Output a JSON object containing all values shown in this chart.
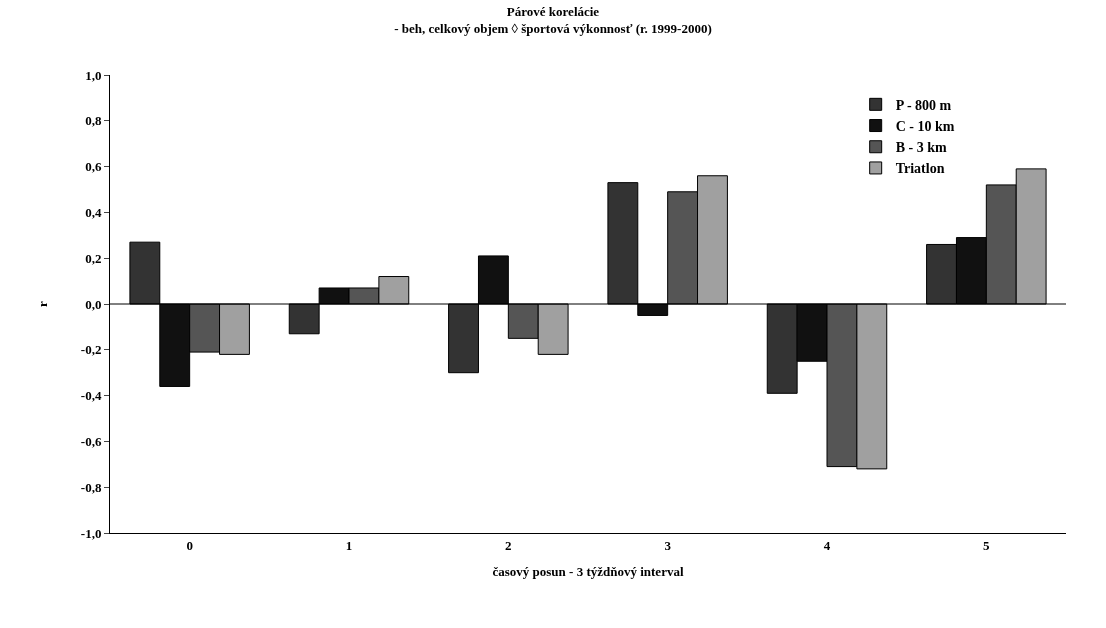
{
  "chart_data": {
    "type": "bar",
    "title": "Párové korelácie",
    "subtitle": "- beh, celkový objem ◊ športová výkonnosť (r. 1999-2000)",
    "xlabel": "časový posun - 3 týždňový interval",
    "ylabel": "r",
    "categories": [
      "0",
      "1",
      "2",
      "3",
      "4",
      "5"
    ],
    "series": [
      {
        "name": "P - 800 m",
        "color": "#333333",
        "values": [
          0.27,
          -0.13,
          -0.3,
          0.53,
          -0.39,
          0.26
        ]
      },
      {
        "name": "C - 10 km",
        "color": "#111111",
        "values": [
          -0.36,
          0.07,
          0.21,
          -0.05,
          -0.25,
          0.29
        ]
      },
      {
        "name": "B - 3 km",
        "color": "#555555",
        "values": [
          -0.21,
          0.07,
          -0.15,
          0.49,
          -0.71,
          0.52
        ]
      },
      {
        "name": "Triatlon",
        "color": "#a0a0a0",
        "values": [
          -0.22,
          0.12,
          -0.22,
          0.56,
          -0.72,
          0.59
        ]
      }
    ],
    "ylim": [
      -1.0,
      1.0
    ],
    "yticks": [
      {
        "value": -1.0,
        "label": "-1,0"
      },
      {
        "value": -0.8,
        "label": "-0,8"
      },
      {
        "value": -0.6,
        "label": "-0,6"
      },
      {
        "value": -0.4,
        "label": "-0,4"
      },
      {
        "value": -0.2,
        "label": "-0,2"
      },
      {
        "value": 0.0,
        "label": "0,0"
      },
      {
        "value": 0.2,
        "label": "0,2"
      },
      {
        "value": 0.4,
        "label": "0,4"
      },
      {
        "value": 0.6,
        "label": "0,6"
      },
      {
        "value": 0.8,
        "label": "0,8"
      },
      {
        "value": 1.0,
        "label": "1,0"
      }
    ],
    "ref_lines": [
      {
        "axis": "y",
        "value": 0.0,
        "color": "#000000"
      }
    ],
    "legend": "top right"
  }
}
